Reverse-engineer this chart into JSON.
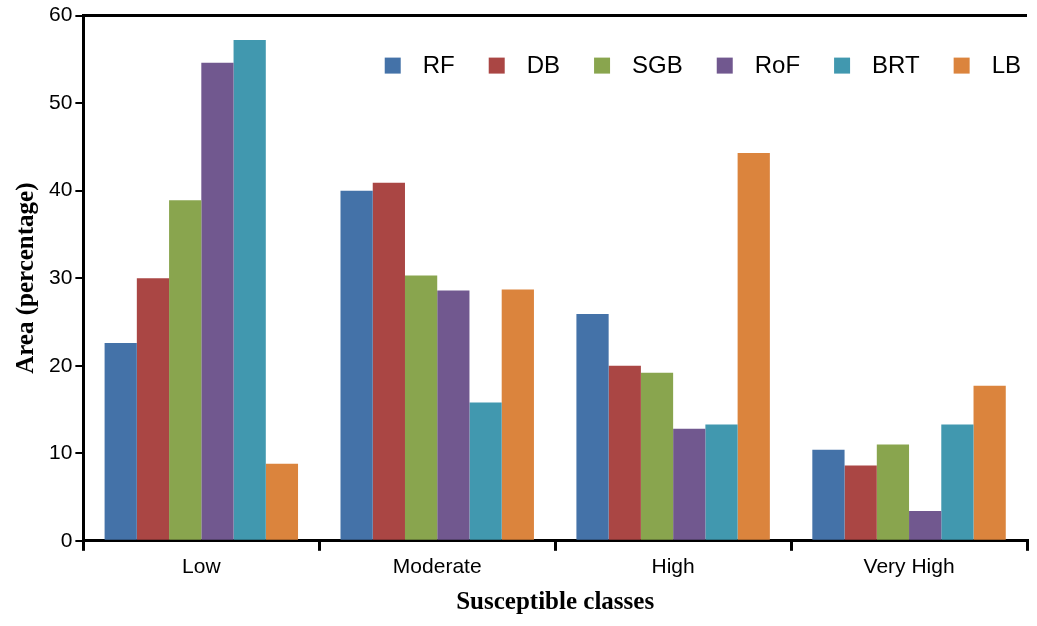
{
  "chart_data": {
    "type": "bar",
    "xlabel": "Susceptible classes",
    "ylabel": "Area (percentage)",
    "categories": [
      "Low",
      "Moderate",
      "High",
      "Very High"
    ],
    "series": [
      {
        "name": "RF",
        "color": "#4472a8",
        "values": [
          22.6,
          40.0,
          25.9,
          10.4
        ]
      },
      {
        "name": "DB",
        "color": "#aa4644",
        "values": [
          30.0,
          40.9,
          20.0,
          8.6
        ]
      },
      {
        "name": "SGB",
        "color": "#89a54e",
        "values": [
          38.9,
          30.3,
          19.2,
          11.0
        ]
      },
      {
        "name": "RoF",
        "color": "#71588f",
        "values": [
          54.6,
          28.6,
          12.8,
          3.4
        ]
      },
      {
        "name": "BRT",
        "color": "#4198af",
        "values": [
          57.2,
          15.8,
          13.3,
          13.3
        ]
      },
      {
        "name": "LB",
        "color": "#db843d",
        "values": [
          8.8,
          28.7,
          44.3,
          17.7
        ]
      }
    ],
    "ylim": [
      0,
      60
    ],
    "yticks": [
      0,
      10,
      20,
      30,
      40,
      50,
      60
    ],
    "grid": false,
    "legend": "top right"
  }
}
